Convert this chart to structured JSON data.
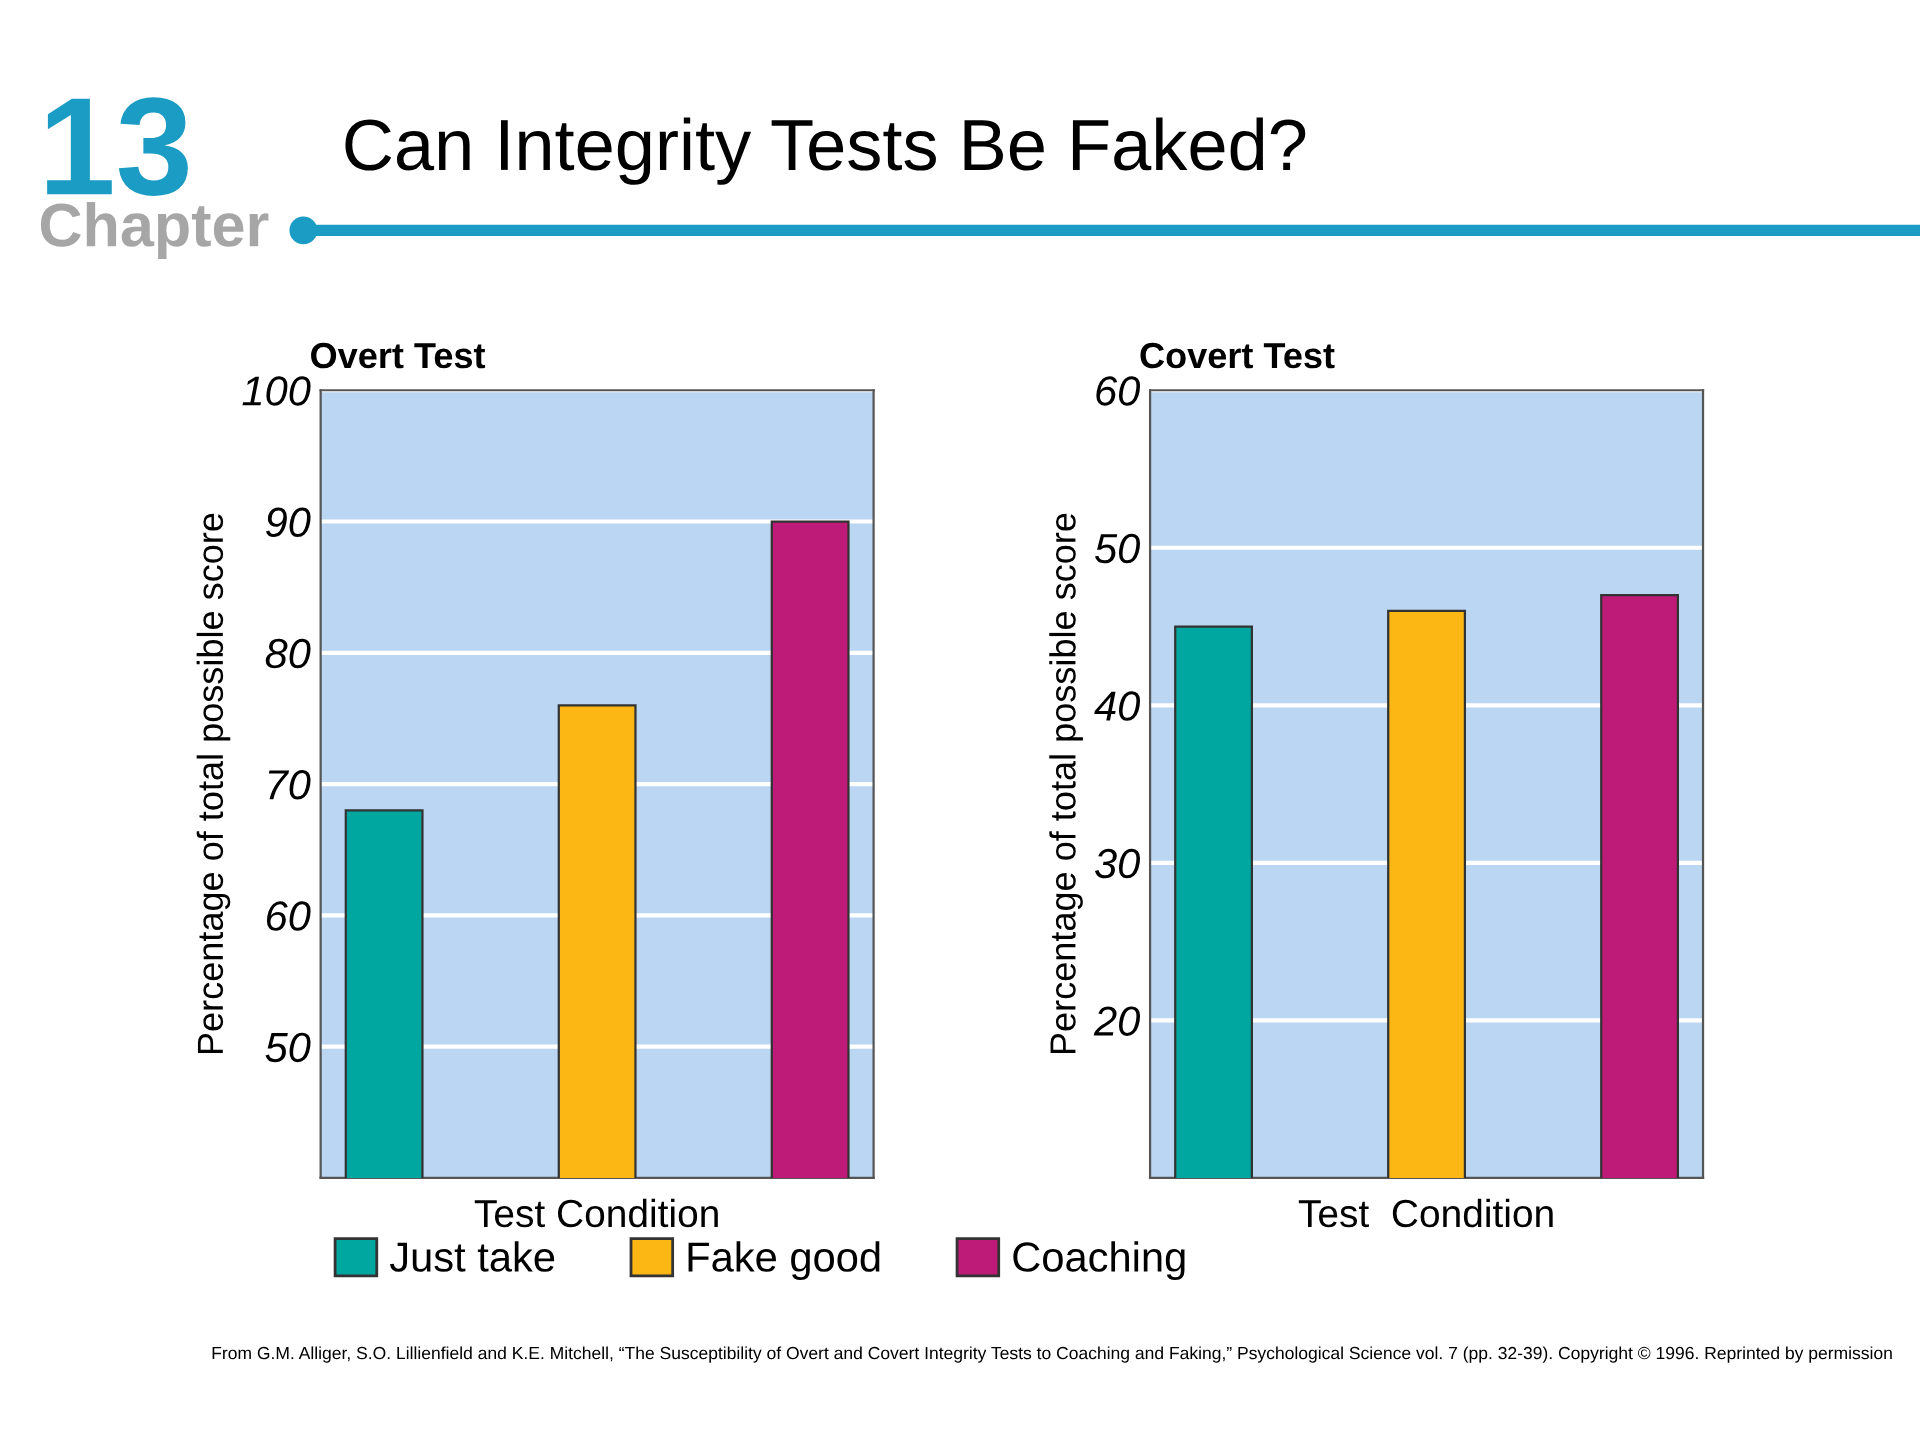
{
  "chart_data": [
    {
      "type": "bar",
      "title": "Overt Test",
      "xlabel": "Test Condition",
      "ylabel": "Percentage of total possible score",
      "categories": [
        null,
        null,
        null
      ],
      "series": [
        {
          "name": "Just take",
          "color": "#00a6a0",
          "values": [
            68,
            null,
            null
          ]
        },
        {
          "name": "Fake good",
          "color": "#fdb714",
          "values": [
            null,
            76,
            null
          ]
        },
        {
          "name": "Coaching",
          "color": "#be1a78",
          "values": [
            null,
            null,
            90
          ]
        }
      ],
      "ylim": [
        40,
        100
      ],
      "yticks": [
        50,
        60,
        70,
        80,
        90,
        100
      ],
      "grid": "y",
      "legend": "bottom",
      "annotations": [
        "13",
        "Chapter",
        "Can Integrity Tests Be Faked?",
        "From G.M. Alliger, S.O. Lillienfield and K.E. Mitchell, “The Susceptibility of Overt and Covert Integrity Tests to Coaching and Faking,” Psychological Science vol. 7 (pp. 32-39). Copyright © 1996. Reprinted by permission"
      ]
    },
    {
      "type": "bar",
      "title": "Covert Test",
      "xlabel": "Test  Condition",
      "ylabel": "Percentage of total possible score",
      "categories": [
        null,
        null,
        null
      ],
      "series": [
        {
          "color": "#00a6a0",
          "values": [
            45,
            null,
            null
          ]
        },
        {
          "color": "#fdb714",
          "values": [
            null,
            46,
            null
          ]
        },
        {
          "color": "#be1a78",
          "values": [
            null,
            null,
            47
          ]
        }
      ],
      "ylim": [
        10,
        60
      ],
      "yticks": [
        20,
        30,
        40,
        50,
        60
      ],
      "grid": "y"
    }
  ]
}
